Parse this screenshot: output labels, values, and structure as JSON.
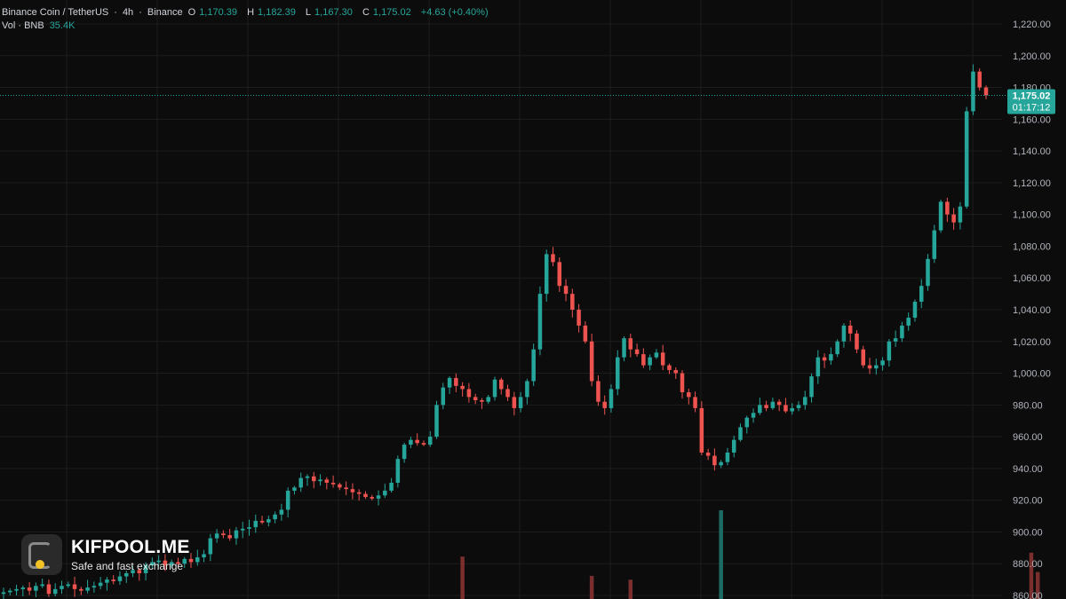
{
  "header": {
    "symbol": "Binance Coin / TetherUS",
    "interval": "4h",
    "exchange": "Binance",
    "open_label": "O",
    "open": "1,170.39",
    "high_label": "H",
    "high": "1,182.39",
    "low_label": "L",
    "low": "1,167.30",
    "close_label": "C",
    "close": "1,175.02",
    "change": "+4.63 (+0.40%)",
    "volume_label": "Vol · BNB",
    "volume": "35.4K",
    "sep": "·"
  },
  "price_tag": {
    "price": "1,175.02",
    "countdown": "01:17:12"
  },
  "watermark": {
    "brand": "KIFPOOL.ME",
    "tagline": "Safe and fast exchange"
  },
  "colors": {
    "up": "#26a69a",
    "down": "#ef5350",
    "background": "#0c0c0c",
    "grid": "#1c1c1c",
    "axis_text": "#b2b5be"
  },
  "chart_data": {
    "type": "candlestick",
    "title": "Binance Coin / TetherUS",
    "x_unit": "4h candles",
    "ylim": [
      856,
      1226
    ],
    "y_ticks": [
      860,
      880,
      900,
      920,
      940,
      960,
      980,
      1000,
      1020,
      1040,
      1060,
      1080,
      1100,
      1120,
      1140,
      1160,
      1180,
      1200,
      1220
    ],
    "current_price": 1175.02,
    "closes": [
      862,
      863,
      864,
      865,
      863,
      866,
      867,
      861,
      864,
      866,
      867,
      864,
      863,
      865,
      866,
      868,
      870,
      869,
      872,
      874,
      876,
      874,
      879,
      881,
      882,
      879,
      881,
      880,
      883,
      881,
      884,
      886,
      896,
      899,
      898,
      896,
      901,
      902,
      903,
      907,
      906,
      908,
      911,
      914,
      926,
      928,
      934,
      935,
      932,
      933,
      931,
      930,
      928,
      927,
      925,
      924,
      922,
      921,
      923,
      926,
      931,
      946,
      955,
      958,
      956,
      955,
      960,
      980,
      991,
      997,
      992,
      990,
      985,
      983,
      982,
      985,
      996,
      990,
      985,
      978,
      985,
      995,
      1015,
      1050,
      1075,
      1070,
      1055,
      1050,
      1040,
      1030,
      1020,
      995,
      982,
      978,
      990,
      1010,
      1022,
      1015,
      1012,
      1005,
      1010,
      1013,
      1005,
      1002,
      1000,
      988,
      985,
      978,
      950,
      948,
      942,
      944,
      950,
      958,
      966,
      972,
      975,
      980,
      978,
      982,
      980,
      976,
      978,
      980,
      985,
      998,
      1010,
      1008,
      1012,
      1020,
      1030,
      1025,
      1015,
      1005,
      1003,
      1005,
      1008,
      1020,
      1022,
      1030,
      1035,
      1045,
      1055,
      1072,
      1090,
      1108,
      1100,
      1095,
      1105,
      1165,
      1190,
      1180,
      1175.02
    ],
    "volume_spikes": [
      {
        "index": 71,
        "value": 11
      },
      {
        "index": 91,
        "value": 6
      },
      {
        "index": 97,
        "value": 5
      },
      {
        "index": 111,
        "value": 23
      },
      {
        "index": 159,
        "value": 12
      },
      {
        "index": 160,
        "value": 7
      }
    ]
  }
}
